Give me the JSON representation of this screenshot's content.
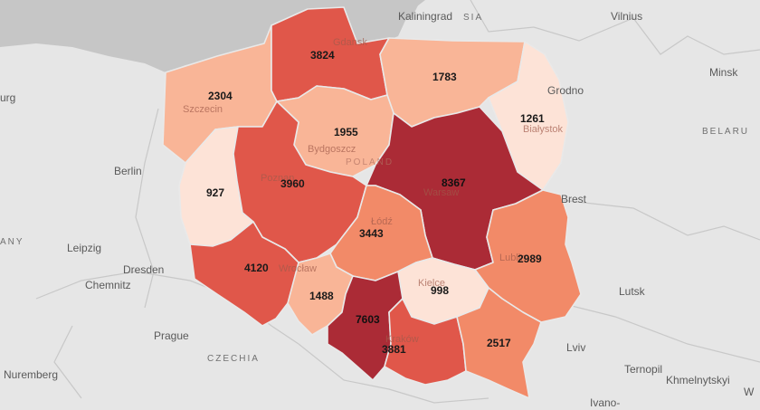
{
  "colors": {
    "land": "#e6e6e6",
    "sea": "#c6c6c6",
    "scale": [
      "#fde3d7",
      "#f9b597",
      "#f28a68",
      "#e0574a",
      "#c7363a",
      "#ab2b36"
    ]
  },
  "places": [
    {
      "id": "kaliningrad",
      "text": "Kaliningrad"
    },
    {
      "id": "russia",
      "text": "SIA"
    },
    {
      "id": "vilnius",
      "text": "Vilnius"
    },
    {
      "id": "minsk",
      "text": "Minsk"
    },
    {
      "id": "belarus",
      "text": "BELARU"
    },
    {
      "id": "grodno",
      "text": "Grodno"
    },
    {
      "id": "berlin",
      "text": "Berlin"
    },
    {
      "id": "leipzig",
      "text": "Leipzig"
    },
    {
      "id": "dresden",
      "text": "Dresden"
    },
    {
      "id": "chemnitz",
      "text": "Chemnitz"
    },
    {
      "id": "prague",
      "text": "Prague"
    },
    {
      "id": "czechia",
      "text": "CZECHIA"
    },
    {
      "id": "nuremberg",
      "text": "Nuremberg"
    },
    {
      "id": "lutsk",
      "text": "Lutsk"
    },
    {
      "id": "lviv",
      "text": "Lviv"
    },
    {
      "id": "brest",
      "text": "Brest"
    },
    {
      "id": "ternopil",
      "text": "Ternopil"
    },
    {
      "id": "khmelnytskyi",
      "text": "Khmelnytskyi"
    },
    {
      "id": "ivano",
      "text": "Ivano-"
    },
    {
      "id": "hamburg",
      "text": "urg"
    },
    {
      "id": "germany",
      "text": "ANY"
    },
    {
      "id": "poland",
      "text": "POLAND"
    },
    {
      "id": "edge-w",
      "text": "W"
    }
  ],
  "faint_labels": [
    {
      "id": "gdansk",
      "text": "Gdansk"
    },
    {
      "id": "szczecin",
      "text": "Szczecin"
    },
    {
      "id": "bydgoszcz",
      "text": "Bydgoszcz"
    },
    {
      "id": "poznan",
      "text": "Poznan"
    },
    {
      "id": "warsaw",
      "text": "Warsaw"
    },
    {
      "id": "bialystok",
      "text": "Białystok"
    },
    {
      "id": "lodz",
      "text": "Łódź"
    },
    {
      "id": "wroclaw",
      "text": "Wrocław"
    },
    {
      "id": "lublin",
      "text": "Lublin"
    },
    {
      "id": "kielce",
      "text": "Kielce"
    },
    {
      "id": "krakow",
      "text": "Kraków"
    }
  ],
  "regions": [
    {
      "id": "zachodniopomorskie",
      "value": 2304,
      "level": 1
    },
    {
      "id": "pomorskie",
      "value": 3824,
      "level": 3
    },
    {
      "id": "warminsko-mazurskie",
      "value": 1783,
      "level": 1
    },
    {
      "id": "podlaskie",
      "value": 1261,
      "level": 0
    },
    {
      "id": "kujawsko-pomorskie",
      "value": 1955,
      "level": 1
    },
    {
      "id": "lubuskie",
      "value": 927,
      "level": 0
    },
    {
      "id": "wielkopolskie",
      "value": 3960,
      "level": 3
    },
    {
      "id": "mazowieckie",
      "value": 8367,
      "level": 5
    },
    {
      "id": "lodzkie",
      "value": 3443,
      "level": 2
    },
    {
      "id": "lubelskie",
      "value": 2989,
      "level": 2
    },
    {
      "id": "dolnoslaskie",
      "value": 4120,
      "level": 3
    },
    {
      "id": "opolskie",
      "value": 1488,
      "level": 1
    },
    {
      "id": "swietokrzyskie",
      "value": 998,
      "level": 0
    },
    {
      "id": "slaskie",
      "value": 7603,
      "level": 5
    },
    {
      "id": "malopolskie",
      "value": 3881,
      "level": 3
    },
    {
      "id": "podkarpackie",
      "value": 2517,
      "level": 2
    }
  ]
}
